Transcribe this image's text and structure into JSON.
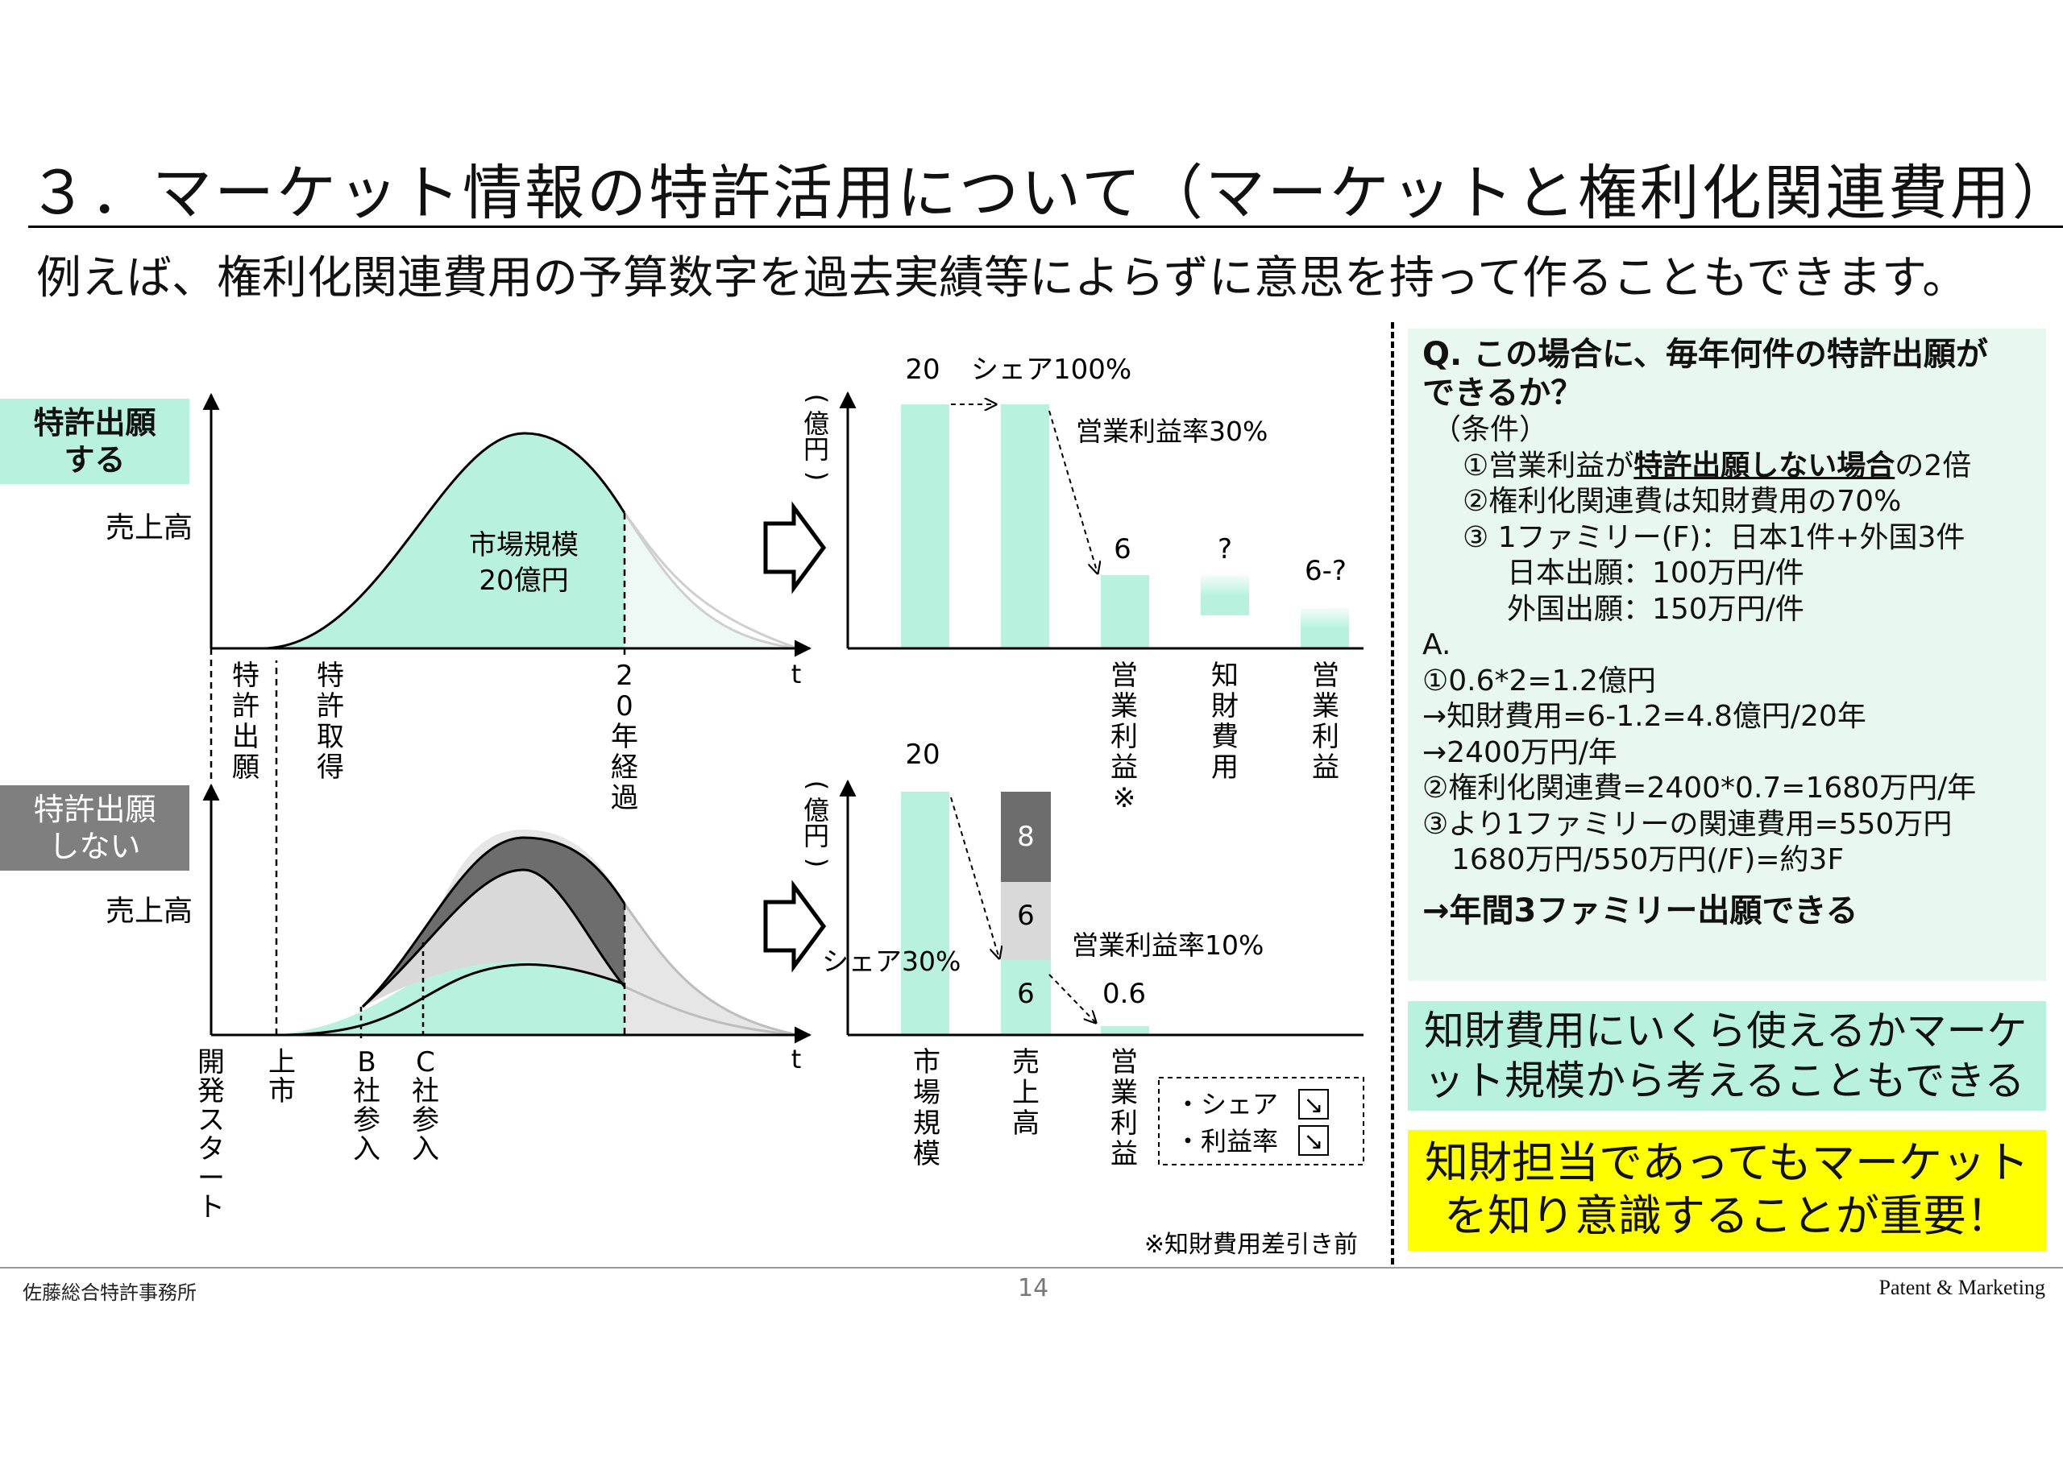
{
  "title": "３．マーケット情報の特許活用について（マーケットと権利化関連費用）",
  "subtitle": "例えば、権利化関連費用の予算数字を過去実績等によらずに意思を持って作ることもできます。",
  "left": {
    "top_legend": [
      "特許出願",
      "する"
    ],
    "bottom_legend": [
      "特許出願",
      "しない"
    ],
    "y_label": "売上高",
    "t_label": "t",
    "market_label": [
      "市場規模",
      "20億円"
    ],
    "top_ticks": [
      "特許出願",
      "特許取得",
      "20年経過"
    ],
    "bottom_ticks": [
      "開発スタート",
      "上市",
      "B社参入",
      "C社参入"
    ]
  },
  "top_chart": {
    "unit": "(億円)",
    "share_label": "シェア100%",
    "margin_label": "営業利益率30%",
    "values": {
      "market": "20",
      "profit": "6",
      "ip_cost": "?",
      "profit_after": "6-?"
    },
    "categories": [
      "営業利益※",
      "知財費用",
      "営業利益"
    ]
  },
  "bottom_chart": {
    "unit": "(億円)",
    "market_value": "20",
    "share_label": "シェア30%",
    "margin_label": "営業利益率10%",
    "stack": [
      "8",
      "6",
      "6"
    ],
    "profit_value": "0.6",
    "categories": [
      "市場規模",
      "売上高",
      "営業利益"
    ],
    "legend": [
      "・シェア",
      "・利益率"
    ],
    "legend_arrow": "↘",
    "footnote": "※知財費用差引き前"
  },
  "chart_data": [
    {
      "type": "bar",
      "unit": "(億円)",
      "categories": [
        "",
        "",
        "営業利益※",
        "知財費用",
        "営業利益"
      ],
      "values": [
        20,
        20,
        6,
        null,
        null
      ],
      "value_labels": [
        "20",
        "",
        "6",
        "?",
        "6-?"
      ]
    },
    {
      "type": "bar",
      "unit": "(億円)",
      "categories": [
        "市場規模",
        "売上高",
        "営業利益"
      ],
      "series": [
        {
          "values": [
            20,
            6,
            0.6
          ]
        },
        {
          "values": [
            0,
            6,
            0
          ]
        },
        {
          "values": [
            0,
            8,
            0
          ]
        }
      ]
    }
  ],
  "qa": {
    "q": [
      "Q. この場合に、毎年何件の特許出願が",
      "できるか？"
    ],
    "conditions_header": "（条件）",
    "c1_pre": "①営業利益が",
    "c1_u": "特許出願しない場合",
    "c1_post": "の2倍",
    "c2": "②権利化関連費は知財費用の70%",
    "c3": "③ 1ファミリー(F)：日本1件+外国3件",
    "c3a": "日本出願：100万円/件",
    "c3b": "外国出願：150万円/件",
    "a": "A.",
    "a1": "①0.6*2=1.2億円",
    "a2": "→知財費用=6-1.2=4.8億円/20年",
    "a3": "→2400万円/年",
    "a4": "②権利化関連費=2400*0.7=1680万円/年",
    "a5": "③より1ファミリーの関連費用=550万円",
    "a6": "1680万円/550万円(/F)=約3F",
    "final": "→年間3ファミリー出願できる"
  },
  "note": [
    "知財費用にいくら使えるかマーケ",
    "ット規模から考えることもできる"
  ],
  "highlight": [
    "知財担当であってもマーケット",
    "を知り意識することが重要！"
  ],
  "footer": {
    "left": "佐藤総合特許事務所",
    "page": "14",
    "right": "Patent & Marketing"
  },
  "colors": {
    "mint": "#b8f2df",
    "dark": "#6d6d6d",
    "light": "#d9d9d9",
    "yellow": "#ffff00"
  }
}
